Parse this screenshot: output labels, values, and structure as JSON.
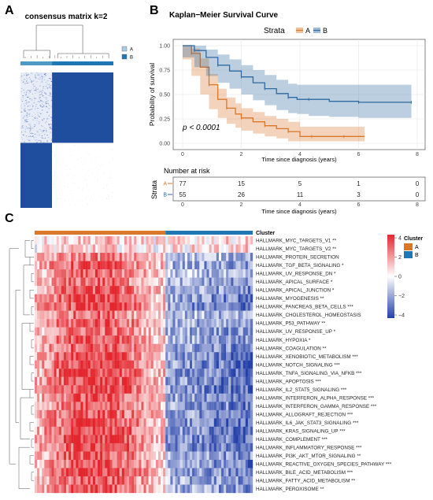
{
  "panel_labels": {
    "a": "A",
    "b": "B",
    "c": "C"
  },
  "consensus": {
    "title": "consensus matrix k=2",
    "legend": [
      "A",
      "B"
    ],
    "colors": {
      "A": "#a6cee3",
      "B": "#1f78b4",
      "block": "#1f4e9e",
      "light": "#ffffff"
    },
    "cluster_fraction_A": 0.3
  },
  "km": {
    "title": "Kaplan−Meier Survival Curve",
    "strata_label": "Strata",
    "strata": [
      "A",
      "B"
    ],
    "colors": {
      "A": "#d9772b",
      "B": "#2f6aa0"
    },
    "pvalue": "p < 0.0001",
    "ylabel": "Probability of survival",
    "xlabel": "Time since diagnosis (years)",
    "yticks": [
      "0.00",
      "0.25",
      "0.50",
      "0.75",
      "1.00"
    ],
    "xticks": [
      "0",
      "2",
      "4",
      "6",
      "8"
    ],
    "risk_title": "Number at risk",
    "risk_ylabel": "Strata",
    "risk_xlabel": "Time since diagnosis (years)",
    "risk_rows": [
      {
        "stratum": "A",
        "values": [
          "77",
          "15",
          "5",
          "1",
          "0"
        ]
      },
      {
        "stratum": "B",
        "values": [
          "55",
          "26",
          "11",
          "3",
          "0"
        ]
      }
    ]
  },
  "chart_data": [
    {
      "type": "line",
      "title": "Kaplan−Meier Survival Curve",
      "xlabel": "Time since diagnosis (years)",
      "ylabel": "Probability of survival",
      "xlim": [
        0,
        8
      ],
      "ylim": [
        0,
        1
      ],
      "series": [
        {
          "name": "A",
          "x": [
            0,
            0.3,
            0.6,
            0.9,
            1.2,
            1.5,
            1.8,
            2.0,
            2.4,
            2.8,
            3.2,
            3.6,
            4.0,
            4.4,
            5.0,
            5.5,
            6.2
          ],
          "y": [
            1.0,
            0.92,
            0.78,
            0.6,
            0.45,
            0.36,
            0.3,
            0.26,
            0.22,
            0.18,
            0.15,
            0.12,
            0.07,
            0.07,
            0.07,
            0.07,
            0.07
          ],
          "ci_low": [
            1.0,
            0.86,
            0.69,
            0.5,
            0.35,
            0.26,
            0.2,
            0.16,
            0.13,
            0.1,
            0.07,
            0.05,
            0.02,
            0.02,
            0.02,
            0.02,
            0.02
          ],
          "ci_high": [
            1.0,
            0.97,
            0.87,
            0.71,
            0.56,
            0.47,
            0.41,
            0.36,
            0.32,
            0.28,
            0.25,
            0.22,
            0.17,
            0.17,
            0.17,
            0.17,
            0.17
          ]
        },
        {
          "name": "B",
          "x": [
            0,
            0.4,
            0.8,
            1.2,
            1.6,
            2.0,
            2.4,
            2.8,
            3.2,
            3.6,
            3.9,
            4.3,
            5.0,
            6.0,
            7.0,
            7.8
          ],
          "y": [
            1.0,
            0.95,
            0.88,
            0.8,
            0.74,
            0.68,
            0.62,
            0.56,
            0.51,
            0.47,
            0.45,
            0.45,
            0.43,
            0.42,
            0.42,
            0.42
          ],
          "ci_low": [
            1.0,
            0.88,
            0.78,
            0.69,
            0.62,
            0.56,
            0.5,
            0.44,
            0.39,
            0.34,
            0.31,
            0.3,
            0.28,
            0.27,
            0.26,
            0.26
          ],
          "ci_high": [
            1.0,
            1.0,
            0.96,
            0.91,
            0.86,
            0.8,
            0.75,
            0.7,
            0.65,
            0.61,
            0.6,
            0.6,
            0.6,
            0.6,
            0.6,
            0.6
          ]
        }
      ]
    },
    {
      "type": "heatmap",
      "title": "Cluster",
      "legend": [
        "A",
        "B"
      ],
      "color_scale": {
        "min": -4,
        "max": 4,
        "ticks": [
          "4",
          "2",
          "0",
          "−2",
          "−4"
        ],
        "low": "#2541a8",
        "mid": "#ffffff",
        "high": "#e3262d"
      },
      "cluster_colors": {
        "A": "#d9772b",
        "B": "#1f78b4"
      },
      "cluster_fraction_A": 0.6,
      "rows": [
        {
          "label": "HALLMARK_MYC_TARGETS_V1 **",
          "a": 0.3,
          "b": 0.2
        },
        {
          "label": "HALLMARK_MYC_TARGETS_V2 **",
          "a": 0.2,
          "b": 0.2
        },
        {
          "label": "HALLMARK_PROTEIN_SECRETION",
          "a": 0.6,
          "b": -0.4
        },
        {
          "label": "HALLMARK_TGF_BETA_SIGNALING *",
          "a": 0.8,
          "b": -0.6
        },
        {
          "label": "HALLMARK_UV_RESPONSE_DN *",
          "a": 0.7,
          "b": -0.5
        },
        {
          "label": "HALLMARK_APICAL_SURFACE *",
          "a": 0.7,
          "b": -0.6
        },
        {
          "label": "HALLMARK_APICAL_JUNCTION *",
          "a": 0.8,
          "b": -0.6
        },
        {
          "label": "HALLMARK_MYOGENESIS **",
          "a": 0.9,
          "b": -0.7
        },
        {
          "label": "HALLMARK_PANCREAS_BETA_CELLS ***",
          "a": 0.9,
          "b": -0.8
        },
        {
          "label": "HALLMARK_CHOLESTEROL_HOMEOSTASIS",
          "a": 0.7,
          "b": -0.5
        },
        {
          "label": "HALLMARK_P53_PATHWAY **",
          "a": 0.8,
          "b": -0.6
        },
        {
          "label": "HALLMARK_UV_RESPONSE_UP *",
          "a": 0.7,
          "b": -0.6
        },
        {
          "label": "HALLMARK_HYPOXIA *",
          "a": 0.8,
          "b": -0.6
        },
        {
          "label": "HALLMARK_COAGULATION **",
          "a": 0.8,
          "b": -0.7
        },
        {
          "label": "HALLMARK_XENOBIOTIC_METABOLISM ***",
          "a": 0.9,
          "b": -0.8
        },
        {
          "label": "HALLMARK_NOTCH_SIGNALING ***",
          "a": 0.9,
          "b": -0.8
        },
        {
          "label": "HALLMARK_TNFA_SIGNALING_VIA_NFKB ***",
          "a": 0.9,
          "b": -0.8
        },
        {
          "label": "HALLMARK_APOPTOSIS ***",
          "a": 0.9,
          "b": -0.8
        },
        {
          "label": "HALLMARK_IL2_STAT5_SIGNALING ***",
          "a": 0.9,
          "b": -0.8
        },
        {
          "label": "HALLMARK_INTERFERON_ALPHA_RESPONSE ***",
          "a": 0.8,
          "b": -0.7
        },
        {
          "label": "HALLMARK_INTERFERON_GAMMA_RESPONSE ***",
          "a": 0.8,
          "b": -0.7
        },
        {
          "label": "HALLMARK_ALLOGRAFT_REJECTION ***",
          "a": 0.8,
          "b": -0.7
        },
        {
          "label": "HALLMARK_IL6_JAK_STAT3_SIGNALING ***",
          "a": 0.9,
          "b": -0.8
        },
        {
          "label": "HALLMARK_KRAS_SIGNALING_UP ***",
          "a": 0.9,
          "b": -0.8
        },
        {
          "label": "HALLMARK_COMPLEMENT ***",
          "a": 0.9,
          "b": -0.8
        },
        {
          "label": "HALLMARK_INFLAMMATORY_RESPONSE ***",
          "a": 0.9,
          "b": -0.8
        },
        {
          "label": "HALLMARK_PI3K_AKT_MTOR_SIGNALING **",
          "a": 0.8,
          "b": -0.6
        },
        {
          "label": "HALLMARK_REACTIVE_OXYGEN_SPECIES_PATHWAY ***",
          "a": 0.8,
          "b": -0.7
        },
        {
          "label": "HALLMARK_BILE_ACID_METABOLISM ***",
          "a": 0.9,
          "b": -0.7
        },
        {
          "label": "HALLMARK_FATTY_ACID_METABOLISM **",
          "a": 0.8,
          "b": -0.6
        },
        {
          "label": "HALLMARK_PEROXISOME **",
          "a": 0.8,
          "b": -0.6
        }
      ]
    }
  ]
}
